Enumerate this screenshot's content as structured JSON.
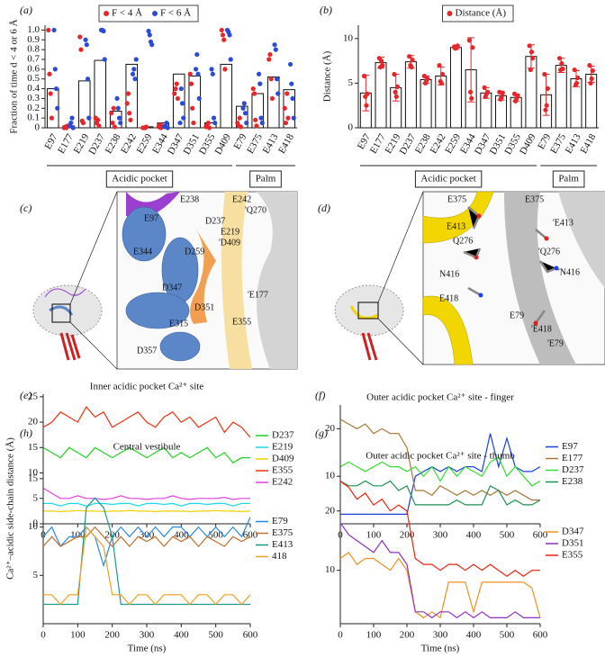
{
  "chart_data": [
    {
      "type": "bar_scatter",
      "label": "(a)",
      "ylabel": "Fraction of time d < 4 or 6 Å",
      "categories": [
        "E97",
        "E177",
        "E219",
        "D237",
        "E238",
        "E242",
        "E259",
        "E344",
        "D347",
        "D351",
        "D355",
        "D409",
        "E79",
        "E375",
        "E413",
        "E418"
      ],
      "values": [
        0.4,
        0.02,
        0.48,
        0.69,
        0.17,
        0.65,
        0.01,
        0.05,
        0.55,
        0.53,
        0.05,
        0.65,
        0.22,
        0.35,
        0.52,
        0.39
      ],
      "series": [
        {
          "name": "F < 4 Å",
          "color": "#e8262a",
          "values": [
            [
              1.0,
              0.55,
              0.35,
              0.1
            ],
            [
              0,
              0.01,
              0,
              0.02
            ],
            [
              0.93,
              0.8,
              0.07,
              0.05
            ],
            [
              0.1,
              0.05,
              0.08,
              0.02
            ],
            [
              0.15,
              0.05,
              0.2,
              0.01
            ],
            [
              0.25,
              0.35,
              0.15,
              0.08
            ],
            [
              0,
              0,
              0,
              0.01
            ],
            [
              0.01,
              0.03,
              0,
              0.02
            ],
            [
              0.35,
              0.4,
              0.45,
              0.3
            ],
            [
              0.55,
              0.45,
              0.2,
              0.05
            ],
            [
              0.01,
              0.03,
              0.05,
              0
            ],
            [
              1.0,
              0.95,
              0.9,
              0.6
            ],
            [
              0.05,
              0.02,
              0.1,
              0.01
            ],
            [
              0.4,
              0.35,
              0.08,
              0.02
            ],
            [
              0.7,
              0.75,
              0.5,
              0.3
            ],
            [
              0.2,
              0.05,
              0.35,
              0.1
            ]
          ]
        },
        {
          "name": "F < 6 Å",
          "color": "#2b4bd6",
          "values": [
            [
              1.0,
              0.6,
              0.4,
              0.2
            ],
            [
              0.02,
              0.05,
              0.1,
              0
            ],
            [
              0.9,
              0.85,
              0.5,
              0.1
            ],
            [
              1.0,
              1.0,
              0.99,
              0.7
            ],
            [
              0.3,
              0.2,
              0.1,
              0.05
            ],
            [
              0.55,
              0.6,
              0.5,
              0.7
            ],
            [
              0.99,
              0.95,
              0.88,
              0.85
            ],
            [
              0.01,
              0.02,
              0.05,
              0
            ],
            [
              0.05,
              0.4,
              0.25,
              0.1
            ],
            [
              0.6,
              0.75,
              0.55,
              0.3
            ],
            [
              0.6,
              0.55,
              0.1,
              0.05
            ],
            [
              1.0,
              0.98,
              0.95,
              0.7
            ],
            [
              0.2,
              0.25,
              0.15,
              0.05
            ],
            [
              0.55,
              0.45,
              0.1,
              0.05
            ],
            [
              0.85,
              0.8,
              0.5,
              0.35
            ],
            [
              0.65,
              0.45,
              0.3,
              0.1
            ]
          ]
        }
      ],
      "ylim": [
        0,
        1.05
      ],
      "yticks": [
        0,
        0.1,
        0.2,
        0.3,
        0.4,
        0.5,
        0.6,
        0.7,
        0.8,
        0.9,
        {
          "value": 1,
          "label": "1.0"
        }
      ],
      "groups": [
        {
          "label": "Acidic pocket",
          "span": [
            0,
            11
          ]
        },
        {
          "label": "Palm",
          "span": [
            12,
            15
          ]
        }
      ]
    },
    {
      "type": "bar_error",
      "label": "(b)",
      "ylabel": "Distance (Å)",
      "categories": [
        "E97",
        "E177",
        "E219",
        "D237",
        "E238",
        "E242",
        "E259",
        "E344",
        "D347",
        "D351",
        "D355",
        "D409",
        "E79",
        "E375",
        "E413",
        "E418"
      ],
      "values": [
        3.9,
        7.3,
        4.5,
        7.4,
        5.4,
        5.8,
        9.0,
        6.5,
        3.9,
        3.6,
        3.4,
        8.0,
        3.7,
        7.0,
        5.5,
        6.0
      ],
      "errors": [
        2.0,
        0.6,
        1.5,
        0.7,
        0.4,
        1.0,
        0.2,
        3.6,
        0.6,
        0.5,
        0.4,
        1.3,
        2.3,
        0.8,
        0.9,
        0.9
      ],
      "series": [
        {
          "name": "Distance (Å)",
          "color": "#e8262a",
          "values": [
            [
              5.8,
              3.5,
              2.5,
              3.8
            ],
            [
              7.8,
              6.8,
              7.5,
              7.0
            ],
            [
              6.0,
              4.0,
              3.5,
              4.6
            ],
            [
              8.0,
              7.0,
              6.8,
              7.6
            ],
            [
              5.8,
              5.0,
              5.3,
              5.5
            ],
            [
              7.0,
              5.2,
              5.0,
              6.0
            ],
            [
              9.1,
              8.9,
              9.0,
              9.2
            ],
            [
              9.8,
              4.0,
              3.3,
              9.0
            ],
            [
              4.5,
              3.5,
              3.8,
              4.0
            ],
            [
              4.0,
              3.2,
              3.4,
              3.9
            ],
            [
              3.8,
              3.0,
              3.3,
              3.6
            ],
            [
              9.2,
              6.5,
              8.5,
              7.8
            ],
            [
              6.0,
              2.0,
              2.5,
              4.4
            ],
            [
              7.8,
              6.5,
              7.2,
              6.6
            ],
            [
              6.5,
              4.8,
              5.0,
              5.6
            ],
            [
              7.0,
              5.0,
              5.5,
              6.4
            ]
          ]
        }
      ],
      "ylim": [
        0,
        11.5
      ],
      "yticks": [
        0,
        5,
        10
      ],
      "groups": [
        {
          "label": "Acidic pocket",
          "span": [
            0,
            11
          ]
        },
        {
          "label": "Palm",
          "span": [
            12,
            15
          ]
        }
      ]
    },
    {
      "type": "line",
      "label": "(e)",
      "title": "Inner acidic pocket Ca²⁺ site",
      "x": [
        0,
        25,
        50,
        75,
        100,
        125,
        150,
        175,
        200,
        225,
        250,
        275,
        300,
        325,
        350,
        375,
        400,
        425,
        450,
        475,
        500,
        525,
        550,
        575,
        600
      ],
      "xlim": [
        0,
        600
      ],
      "xticks": [
        0,
        100,
        200,
        300,
        400,
        500,
        600
      ],
      "ylim": [
        0,
        25.5
      ],
      "yticks": [
        0,
        5,
        10,
        15,
        20,
        25
      ],
      "series": [
        {
          "name": "D237",
          "color": "#22d022",
          "values": [
            15,
            14,
            13,
            15,
            14,
            13,
            15,
            14,
            13,
            14,
            15,
            14,
            13,
            14,
            15,
            13,
            14,
            13,
            14,
            15,
            13,
            14,
            12,
            13,
            13
          ]
        },
        {
          "name": "E219",
          "color": "#20d8e8",
          "values": [
            4,
            4,
            3.5,
            4,
            4,
            3.5,
            4,
            4,
            3.8,
            4,
            4,
            3.5,
            4,
            4,
            3.8,
            4,
            3.5,
            4,
            4,
            3.8,
            4,
            4,
            3.5,
            4,
            4
          ]
        },
        {
          "name": "D409",
          "color": "#f0d000",
          "values": [
            2.5,
            2.5,
            2.4,
            2.5,
            2.6,
            2.5,
            2.5,
            2.4,
            2.5,
            2.5,
            2.6,
            2.5,
            2.5,
            2.4,
            2.5,
            2.5,
            2.5,
            2.4,
            2.5,
            2.5,
            2.6,
            2.5,
            2.5,
            2.4,
            2.5
          ]
        },
        {
          "name": "E355",
          "color": "#f03010",
          "values": [
            19,
            20,
            22,
            21,
            20,
            23,
            21,
            22,
            19,
            20,
            21,
            22,
            20,
            19,
            21,
            22,
            20,
            21,
            19,
            20,
            21,
            18,
            20,
            19,
            17
          ]
        },
        {
          "name": "E242",
          "color": "#e040e0",
          "values": [
            7,
            6,
            5,
            5,
            5.5,
            5,
            5,
            4.8,
            5,
            5.5,
            5,
            5,
            4.8,
            5,
            5,
            5.5,
            5,
            4.8,
            5,
            5,
            5,
            5.2,
            4.8,
            5,
            5
          ]
        }
      ]
    },
    {
      "type": "line",
      "label": "(f)",
      "title": "Outer acidic pocket Ca²⁺ site - finger",
      "x": [
        0,
        25,
        50,
        75,
        100,
        125,
        150,
        175,
        200,
        225,
        250,
        275,
        300,
        325,
        350,
        375,
        400,
        425,
        450,
        475,
        500,
        525,
        550,
        575,
        600
      ],
      "xlim": [
        0,
        600
      ],
      "xticks": [
        0,
        100,
        200,
        300,
        400,
        500,
        600
      ],
      "ylim": [
        0,
        25
      ],
      "yticks": [
        10,
        20
      ],
      "series": [
        {
          "name": "E97",
          "color": "#1a3ee0",
          "values": [
            2,
            2,
            2,
            2,
            2,
            2,
            2,
            2,
            2,
            10,
            11,
            12,
            11,
            12,
            11,
            12,
            12,
            11,
            19,
            12,
            18,
            12,
            11,
            11,
            12
          ]
        },
        {
          "name": "E177",
          "color": "#a87838",
          "values": [
            22,
            21,
            20,
            21,
            19,
            20,
            19,
            19,
            16,
            7,
            7,
            6,
            8,
            7,
            6,
            7,
            6,
            7,
            6,
            7,
            6,
            7,
            6,
            5,
            5
          ]
        },
        {
          "name": "D237",
          "color": "#30e030",
          "values": [
            12,
            13,
            12,
            11,
            12,
            13,
            12,
            12,
            11,
            12,
            10,
            12,
            9,
            12,
            10,
            12,
            11,
            10,
            13,
            14,
            10,
            12,
            10,
            8,
            9
          ]
        },
        {
          "name": "E238",
          "color": "#1e9050",
          "values": [
            9,
            8,
            8,
            9,
            8,
            8,
            9,
            7,
            8,
            4,
            4,
            4,
            4,
            4,
            5,
            4,
            4,
            4,
            8,
            7,
            4,
            5,
            4,
            4,
            5
          ]
        }
      ]
    },
    {
      "type": "line",
      "label": "(h)",
      "title": "Central vestibule",
      "xlabel": "Time (ns)",
      "x": [
        0,
        25,
        50,
        75,
        100,
        125,
        150,
        175,
        200,
        225,
        250,
        275,
        300,
        325,
        350,
        375,
        400,
        425,
        450,
        475,
        500,
        525,
        550,
        575,
        600
      ],
      "xlim": [
        0,
        600
      ],
      "xticks": [
        0,
        100,
        200,
        300,
        400,
        500,
        600
      ],
      "ylim": [
        0,
        17.5
      ],
      "yticks": [
        5,
        10,
        15
      ],
      "series": [
        {
          "name": "E79",
          "color": "#2a8ae0",
          "values": [
            9,
            10,
            8,
            9,
            9,
            10,
            9,
            6,
            9,
            10,
            9,
            10,
            9,
            10,
            9,
            10,
            10,
            9,
            10,
            9,
            10,
            9,
            10,
            9,
            11
          ]
        },
        {
          "name": "E375",
          "color": "#c07030",
          "values": [
            8,
            9,
            8,
            8.5,
            9,
            9,
            10,
            9,
            8,
            9,
            8,
            9,
            8.5,
            9,
            8,
            9,
            8.5,
            9,
            8,
            9,
            8.5,
            8,
            9,
            8.5,
            9
          ]
        },
        {
          "name": "E413",
          "color": "#1a9a8a",
          "values": [
            2,
            2,
            2,
            2,
            2,
            12,
            13,
            12,
            9,
            2,
            2,
            2,
            2,
            2,
            2,
            2,
            2,
            2,
            2,
            2,
            2,
            2,
            2,
            2,
            2
          ]
        },
        {
          "name": "418",
          "color": "#f0a020",
          "values": [
            3,
            3,
            2,
            3,
            3,
            10,
            9,
            8,
            3,
            3,
            2,
            3,
            3,
            2,
            3,
            3,
            3,
            2,
            3,
            3,
            2,
            3,
            3,
            2,
            3
          ]
        }
      ]
    },
    {
      "type": "line",
      "label": "(g)",
      "title": "Outer acidic pocket Ca²⁺ site - thumb",
      "xlabel": "Time (ns)",
      "x": [
        0,
        25,
        50,
        75,
        100,
        125,
        150,
        175,
        200,
        225,
        250,
        275,
        300,
        325,
        350,
        375,
        400,
        425,
        450,
        475,
        500,
        525,
        550,
        575,
        600
      ],
      "xlim": [
        0,
        600
      ],
      "xticks": [
        0,
        100,
        200,
        300,
        400,
        500,
        600
      ],
      "ylim": [
        1,
        28
      ],
      "yticks": [
        10,
        20
      ],
      "series": [
        {
          "name": "D347",
          "color": "#f09020",
          "values": [
            12,
            13,
            11,
            12,
            12,
            11,
            10,
            12,
            10,
            3,
            2,
            3,
            2,
            8,
            8,
            8,
            3,
            8,
            8,
            8,
            8,
            8,
            8,
            7,
            2
          ]
        },
        {
          "name": "D351",
          "color": "#9030c0",
          "values": [
            18,
            16,
            15,
            14,
            13,
            15,
            13,
            13,
            11,
            3,
            3,
            2,
            3,
            3,
            2,
            3,
            2,
            3,
            2,
            2,
            2,
            3,
            2,
            2,
            2
          ]
        },
        {
          "name": "E355",
          "color": "#f02010",
          "values": [
            25,
            24,
            22,
            23,
            21,
            22,
            20,
            21,
            20,
            12,
            11,
            11,
            10,
            11,
            11,
            10,
            11,
            10,
            11,
            10,
            9,
            10,
            9,
            10,
            10
          ]
        }
      ]
    }
  ],
  "shared_ylabel": "Ca²⁺–acidic side-chain distance (Å)",
  "structures": [
    {
      "label": "(c)",
      "residues": [
        "E238",
        "E242",
        "E97",
        "D237",
        "'Q270",
        "E219",
        "'D409",
        "E344",
        "D259",
        "D347",
        "'E177",
        "D351",
        "E315",
        "E355",
        "D357"
      ]
    },
    {
      "label": "(d)",
      "residues": [
        "E375",
        "E375",
        "'E413",
        "E413",
        "Q276",
        "'Q276",
        "'N416",
        "N416",
        "E418",
        "E79",
        "'E418",
        "'E79"
      ]
    }
  ]
}
